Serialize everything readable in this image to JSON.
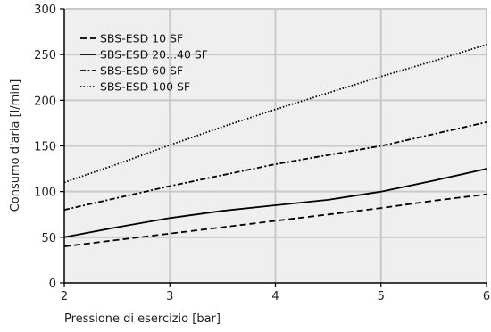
{
  "chart_data": {
    "type": "line",
    "title": "",
    "xlabel": "Pressione di esercizio [bar]",
    "ylabel": "Consumo d'aria [l/min]",
    "xlim": [
      2,
      6
    ],
    "ylim": [
      0,
      300
    ],
    "xticks": [
      2,
      3,
      4,
      5,
      6
    ],
    "yticks": [
      0,
      50,
      100,
      150,
      200,
      250,
      300
    ],
    "x": [
      2,
      2.5,
      3,
      3.5,
      4,
      4.5,
      5,
      5.5,
      6
    ],
    "grid": true,
    "legend_position": "top-left",
    "series": [
      {
        "name": "SBS-ESD 10 SF",
        "dash": "dashed",
        "values": [
          40,
          47,
          54,
          61,
          68,
          75,
          82,
          90,
          97
        ]
      },
      {
        "name": "SBS-ESD 20...40 SF",
        "dash": "solid",
        "values": [
          50,
          61,
          71,
          79,
          85,
          91,
          100,
          112,
          125
        ]
      },
      {
        "name": "SBS-ESD 60 SF",
        "dash": "dashdot-dense",
        "values": [
          80,
          93,
          106,
          118,
          130,
          140,
          150,
          163,
          176
        ]
      },
      {
        "name": "SBS-ESD 100 SF",
        "dash": "dotted",
        "values": [
          110,
          130,
          151,
          171,
          190,
          208,
          226,
          243,
          261
        ]
      }
    ]
  }
}
